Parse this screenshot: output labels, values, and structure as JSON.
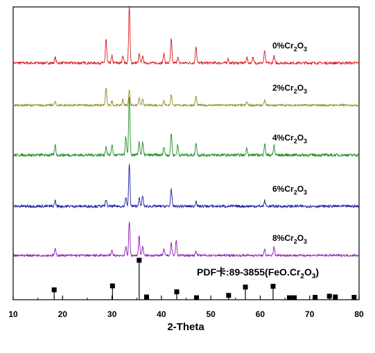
{
  "chart_data": {
    "type": "line",
    "title": "",
    "xlabel": "2-Theta",
    "ylabel": "",
    "xlim": [
      10,
      80
    ],
    "x_ticks": [
      "10",
      "20",
      "30",
      "40",
      "50",
      "60",
      "70",
      "80"
    ],
    "grid": false,
    "series": [
      {
        "label_main": "0%Cr",
        "label_sub1": "2",
        "label_mid": "O",
        "label_sub2": "3",
        "color": "#d7191c",
        "peaks": [
          [
            18.5,
            0.1
          ],
          [
            28.8,
            0.42
          ],
          [
            30.0,
            0.12
          ],
          [
            32.2,
            0.14
          ],
          [
            33.5,
            1.0
          ],
          [
            35.5,
            0.16
          ],
          [
            36.2,
            0.12
          ],
          [
            40.5,
            0.16
          ],
          [
            42.0,
            0.42
          ],
          [
            43.3,
            0.1
          ],
          [
            47.0,
            0.3
          ],
          [
            53.5,
            0.08
          ],
          [
            57.3,
            0.1
          ],
          [
            58.5,
            0.1
          ],
          [
            60.9,
            0.22
          ],
          [
            62.8,
            0.12
          ]
        ]
      },
      {
        "label_main": "2%Cr",
        "label_sub1": "2",
        "label_mid": "O",
        "label_sub2": "3",
        "color": "#8c8a1a",
        "peaks": [
          [
            18.5,
            0.08
          ],
          [
            28.8,
            0.42
          ],
          [
            30.0,
            0.1
          ],
          [
            32.2,
            0.14
          ],
          [
            33.5,
            0.38
          ],
          [
            35.5,
            0.18
          ],
          [
            36.2,
            0.14
          ],
          [
            40.5,
            0.12
          ],
          [
            42.0,
            0.26
          ],
          [
            47.0,
            0.22
          ],
          [
            57.3,
            0.08
          ],
          [
            60.9,
            0.12
          ]
        ]
      },
      {
        "label_main": "4%Cr",
        "label_sub1": "2",
        "label_mid": "O",
        "label_sub2": "3",
        "color": "#1f8a1f",
        "peaks": [
          [
            18.5,
            0.16
          ],
          [
            28.8,
            0.14
          ],
          [
            30.0,
            0.18
          ],
          [
            32.8,
            0.3
          ],
          [
            33.5,
            0.95
          ],
          [
            35.5,
            0.22
          ],
          [
            36.2,
            0.2
          ],
          [
            40.5,
            0.14
          ],
          [
            42.0,
            0.36
          ],
          [
            43.3,
            0.16
          ],
          [
            47.0,
            0.2
          ],
          [
            57.3,
            0.12
          ],
          [
            60.9,
            0.18
          ],
          [
            62.8,
            0.16
          ]
        ]
      },
      {
        "label_main": "6%Cr",
        "label_sub1": "2",
        "label_mid": "O",
        "label_sub2": "3",
        "color": "#1a1aa0",
        "peaks": [
          [
            18.5,
            0.1
          ],
          [
            28.8,
            0.12
          ],
          [
            32.8,
            0.16
          ],
          [
            33.5,
            0.72
          ],
          [
            35.5,
            0.14
          ],
          [
            36.2,
            0.18
          ],
          [
            42.0,
            0.3
          ],
          [
            47.0,
            0.1
          ],
          [
            60.9,
            0.1
          ]
        ]
      },
      {
        "label_main": "8%Cr",
        "label_sub1": "2",
        "label_mid": "O",
        "label_sub2": "3",
        "color": "#8a1ab0",
        "peaks": [
          [
            18.5,
            0.14
          ],
          [
            30.0,
            0.1
          ],
          [
            32.8,
            0.18
          ],
          [
            33.5,
            0.72
          ],
          [
            35.5,
            0.42
          ],
          [
            36.2,
            0.2
          ],
          [
            40.5,
            0.12
          ],
          [
            42.0,
            0.26
          ],
          [
            43.0,
            0.32
          ],
          [
            47.0,
            0.1
          ],
          [
            60.9,
            0.12
          ],
          [
            62.8,
            0.18
          ]
        ]
      }
    ],
    "reference": {
      "label_main": "PDF卡:89-3855(FeO.Cr",
      "label_sub1": "2",
      "label_mid": "O",
      "label_sub2": "3",
      "label_end": ")",
      "color": "#000000",
      "lines": [
        [
          18.3,
          25
        ],
        [
          30.1,
          35
        ],
        [
          35.5,
          100
        ],
        [
          37.0,
          7
        ],
        [
          43.1,
          20
        ],
        [
          47.1,
          5
        ],
        [
          53.6,
          11
        ],
        [
          57.0,
          32
        ],
        [
          62.6,
          34
        ],
        [
          65.9,
          5
        ],
        [
          66.9,
          5
        ],
        [
          71.1,
          6
        ],
        [
          74.0,
          9
        ],
        [
          75.2,
          7
        ],
        [
          79.0,
          6
        ]
      ]
    }
  }
}
